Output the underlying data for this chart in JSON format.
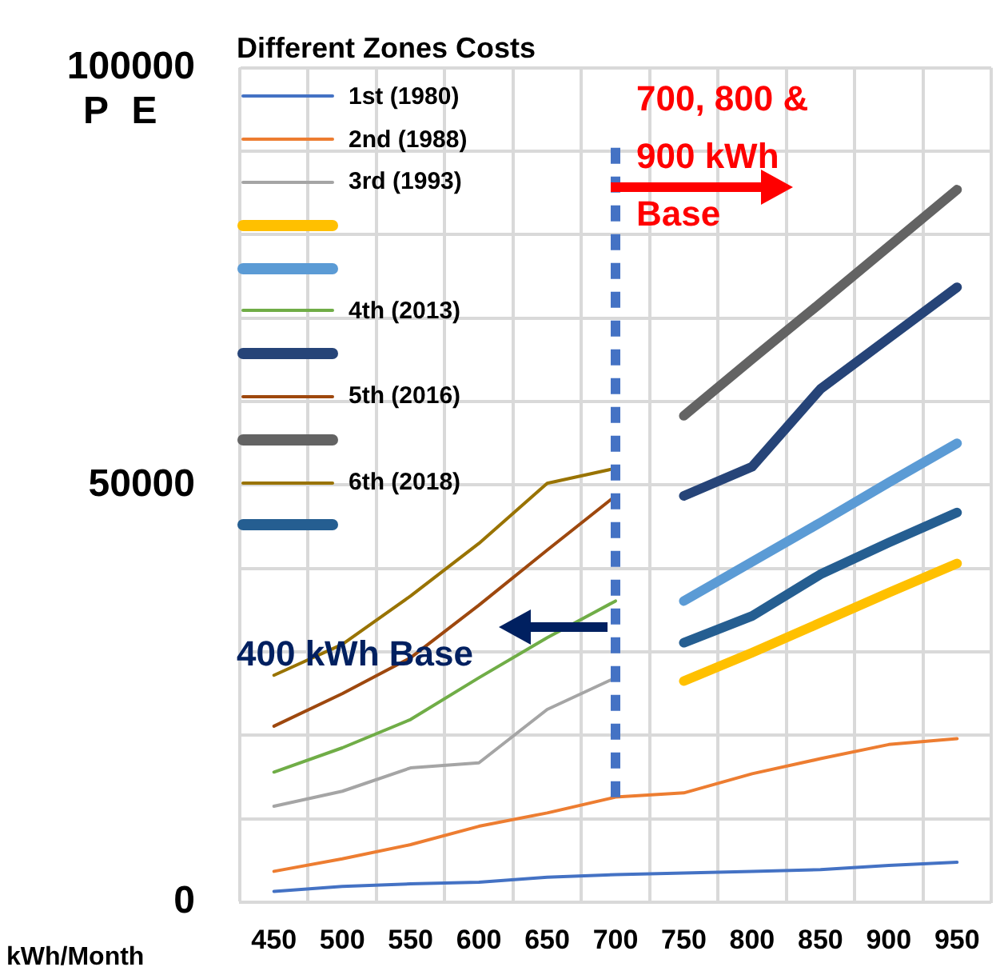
{
  "chart_data": {
    "type": "line",
    "legend_title": "Different Zones Costs",
    "ylabel": "P E",
    "xlabel": "kWh/Month",
    "categories": [
      "450",
      "500",
      "550",
      "600",
      "650",
      "700",
      "750",
      "800",
      "850",
      "900",
      "950"
    ],
    "ylim": [
      0,
      100000
    ],
    "yticks": [
      0,
      {
        "value": 10000,
        "label": null
      },
      {
        "value": 20000,
        "label": null
      },
      {
        "value": 30000,
        "label": null
      },
      {
        "value": 40000,
        "label": null
      },
      50000,
      {
        "value": 60000,
        "label": null
      },
      {
        "value": 70000,
        "label": null
      },
      {
        "value": 80000,
        "label": null
      },
      {
        "value": 90000,
        "label": null
      },
      100000
    ],
    "grid": true,
    "legend": "top left",
    "marker": "none",
    "line_style": "solid",
    "series": [
      {
        "name": "1st (1980)",
        "color": "#4472c4",
        "values": [
          1300,
          1900,
          2200,
          2400,
          3000,
          3300,
          3500,
          3700,
          3900,
          4400,
          4800
        ]
      },
      {
        "name": "2nd (1988)",
        "color": "#ed7d31",
        "values": [
          3700,
          5200,
          6900,
          9100,
          10700,
          12600,
          13100,
          15400,
          17200,
          18900,
          19600
        ]
      },
      {
        "name": "3rd (1993)",
        "color": "#a5a5a5",
        "values": [
          11500,
          13300,
          16100,
          16700,
          23100,
          26900,
          null,
          null,
          null,
          null,
          null
        ]
      },
      {
        "color": "#ffc000",
        "values": [
          null,
          null,
          null,
          null,
          null,
          null,
          26500,
          29900,
          33500,
          37100,
          40600
        ]
      },
      {
        "color": "#5b9bd5",
        "values": [
          null,
          null,
          null,
          null,
          null,
          null,
          36100,
          40800,
          45500,
          50300,
          55000
        ]
      },
      {
        "name": "4th (2013)",
        "color": "#70ad47",
        "values": [
          15600,
          18500,
          21900,
          26900,
          31700,
          36100,
          null,
          null,
          null,
          null,
          null
        ]
      },
      {
        "color": "#264478",
        "values": [
          null,
          null,
          null,
          null,
          null,
          null,
          48700,
          52200,
          61500,
          67600,
          73700
        ]
      },
      {
        "name": "5th (2016)",
        "color": "#9e480e",
        "values": [
          21100,
          25000,
          29300,
          35600,
          42200,
          48700,
          null,
          null,
          null,
          null,
          null
        ]
      },
      {
        "color": "#636363",
        "values": [
          null,
          null,
          null,
          null,
          null,
          null,
          58300,
          65100,
          71800,
          78600,
          85400
        ]
      },
      {
        "name": "6th (2018)",
        "color": "#997300",
        "values": [
          27200,
          30900,
          36700,
          43000,
          50200,
          52000,
          null,
          null,
          null,
          null,
          null
        ]
      },
      {
        "color": "#255e91",
        "values": [
          null,
          null,
          null,
          null,
          null,
          null,
          31100,
          34300,
          39300,
          43100,
          46700
        ]
      }
    ],
    "ref_lines": [
      {
        "axis": "x",
        "value": "700",
        "color": "#4472c4",
        "line_style": "dashed"
      }
    ],
    "annotations": [
      "700, 800 & 900 kWh Base",
      {
        "text": "400 kWh Base",
        "y": 33000
      }
    ]
  }
}
